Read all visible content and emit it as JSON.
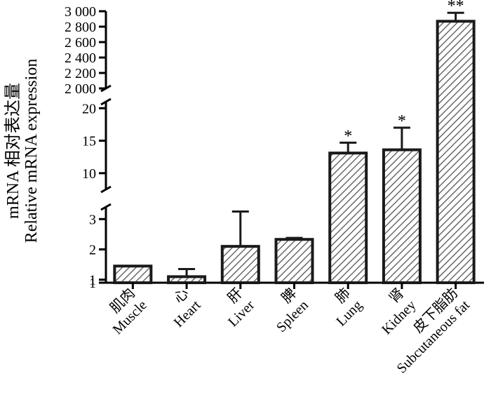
{
  "chart_data": {
    "type": "bar",
    "ylabel_cn": "mRNA 相对表达量",
    "ylabel_en": "Relative mRNA expression",
    "categories": [
      {
        "cn": "肌肉",
        "en": "Muscle"
      },
      {
        "cn": "心",
        "en": "Heart"
      },
      {
        "cn": "肝",
        "en": "Liver"
      },
      {
        "cn": "脾",
        "en": "Spleen"
      },
      {
        "cn": "肺",
        "en": "Lung"
      },
      {
        "cn": "肾",
        "en": "Kidney"
      },
      {
        "cn": "皮下脂肪",
        "en": "Subcutaneous fat"
      }
    ],
    "values": [
      1.45,
      1.1,
      2.1,
      2.33,
      13.1,
      13.6,
      2870
    ],
    "errors": [
      0,
      0.25,
      1.15,
      0.05,
      1.6,
      3.4,
      110
    ],
    "significance": [
      "",
      "",
      "",
      "",
      "*",
      "*",
      "**"
    ],
    "axis_break": true,
    "y_segments": [
      {
        "range": [
          1,
          3.4
        ],
        "ticks": [
          "1",
          "1",
          "2",
          "3"
        ],
        "tick_values": [
          0.9,
          1.0,
          2.0,
          3.0
        ]
      },
      {
        "range": [
          7.5,
          21
        ],
        "ticks": [
          "10",
          "15",
          "20"
        ],
        "tick_values": [
          10,
          15,
          20
        ]
      },
      {
        "range": [
          2000,
          3000
        ],
        "ticks": [
          "2 000",
          "2 200",
          "2 400",
          "2 600",
          "2 800",
          "3 000"
        ],
        "tick_values": [
          2000,
          2200,
          2400,
          2600,
          2800,
          3000
        ]
      }
    ],
    "bar_pattern": "diagonal-hatch",
    "grid": false,
    "legend": "none"
  }
}
